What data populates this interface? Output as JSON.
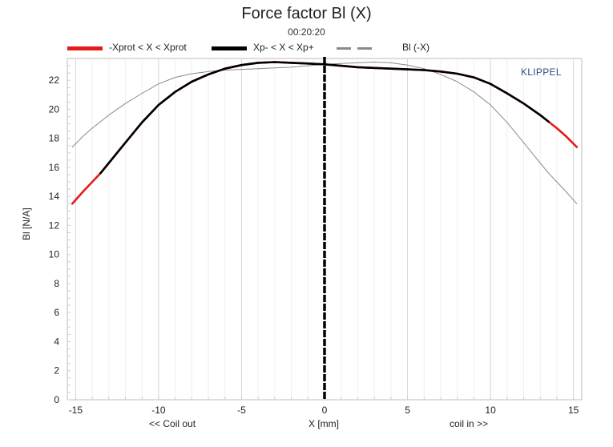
{
  "chart_data": {
    "type": "line",
    "title": "Force factor Bl (X)",
    "subtitle": "00:20:20",
    "watermark": "KLIPPEL",
    "xlabel": "X [mm]",
    "xlabel_left": "<< Coil out",
    "xlabel_right": "coil in >>",
    "ylabel": "Bl [N/A]",
    "xlim": [
      -15.5,
      15.5
    ],
    "ylim": [
      0,
      23.5
    ],
    "xticks": [
      -15,
      -10,
      -5,
      0,
      5,
      10,
      15
    ],
    "yticks": [
      0,
      2,
      4,
      6,
      8,
      10,
      12,
      14,
      16,
      18,
      20,
      22
    ],
    "grid": true,
    "legend_position": "top",
    "legend": [
      {
        "label": "-Xprot < X < Xprot",
        "color": "#e31b1b",
        "style": "solid-thick"
      },
      {
        "label": "Xp- < X < Xp+",
        "color": "#000000",
        "style": "solid-thick"
      },
      {
        "label": "Bl (-X)",
        "color": "#8a8a8a",
        "style": "dashed"
      }
    ],
    "series": [
      {
        "name": "-Xprot < X < Xprot",
        "color": "#e31b1b",
        "x": [
          -15.2,
          -14.5,
          -14,
          -13.5,
          -13,
          -12.5,
          -12,
          -11,
          -10,
          -9,
          -8,
          -7,
          -6,
          -5,
          -4,
          -3,
          -2,
          -1,
          0,
          1,
          2,
          3,
          4,
          5,
          6,
          7,
          8,
          9,
          10,
          11,
          12,
          13,
          13.5,
          14,
          14.5,
          15.2
        ],
        "y": [
          13.5,
          14.4,
          15.0,
          15.6,
          16.3,
          17.0,
          17.7,
          19.1,
          20.3,
          21.2,
          21.9,
          22.4,
          22.8,
          23.05,
          23.2,
          23.25,
          23.2,
          23.15,
          23.1,
          23.0,
          22.9,
          22.85,
          22.8,
          22.75,
          22.7,
          22.6,
          22.45,
          22.2,
          21.75,
          21.1,
          20.4,
          19.6,
          19.15,
          18.7,
          18.2,
          17.4
        ]
      },
      {
        "name": "Xp- < X < Xp+",
        "color": "#000000",
        "x": [
          -13.5,
          -13,
          -12.5,
          -12,
          -11,
          -10,
          -9,
          -8,
          -7,
          -6,
          -5,
          -4,
          -3,
          -2,
          -1,
          0,
          1,
          2,
          3,
          4,
          5,
          6,
          7,
          8,
          9,
          10,
          11,
          12,
          13,
          13.5
        ],
        "y": [
          15.6,
          16.3,
          17.0,
          17.7,
          19.1,
          20.3,
          21.2,
          21.9,
          22.4,
          22.8,
          23.05,
          23.2,
          23.25,
          23.2,
          23.15,
          23.1,
          23.0,
          22.9,
          22.85,
          22.8,
          22.75,
          22.7,
          22.6,
          22.45,
          22.2,
          21.75,
          21.1,
          20.4,
          19.6,
          19.15
        ]
      },
      {
        "name": "Bl (-X)",
        "color": "#8a8a8a",
        "x": [
          -15.2,
          -14.5,
          -14,
          -13,
          -12,
          -11,
          -10,
          -9,
          -8,
          -7,
          -6,
          -5,
          -4,
          -3,
          -2,
          -1,
          0,
          1,
          2,
          3,
          4,
          5,
          6,
          7,
          8,
          9,
          10,
          11,
          12,
          12.5,
          13,
          13.5,
          14,
          14.5,
          15.2
        ],
        "y": [
          17.4,
          18.2,
          18.7,
          19.6,
          20.4,
          21.1,
          21.75,
          22.2,
          22.45,
          22.6,
          22.7,
          22.75,
          22.8,
          22.85,
          22.9,
          23.0,
          23.1,
          23.15,
          23.2,
          23.25,
          23.2,
          23.05,
          22.8,
          22.4,
          21.9,
          21.2,
          20.3,
          19.1,
          17.7,
          17.0,
          16.3,
          15.6,
          15.0,
          14.4,
          13.5
        ]
      }
    ]
  }
}
